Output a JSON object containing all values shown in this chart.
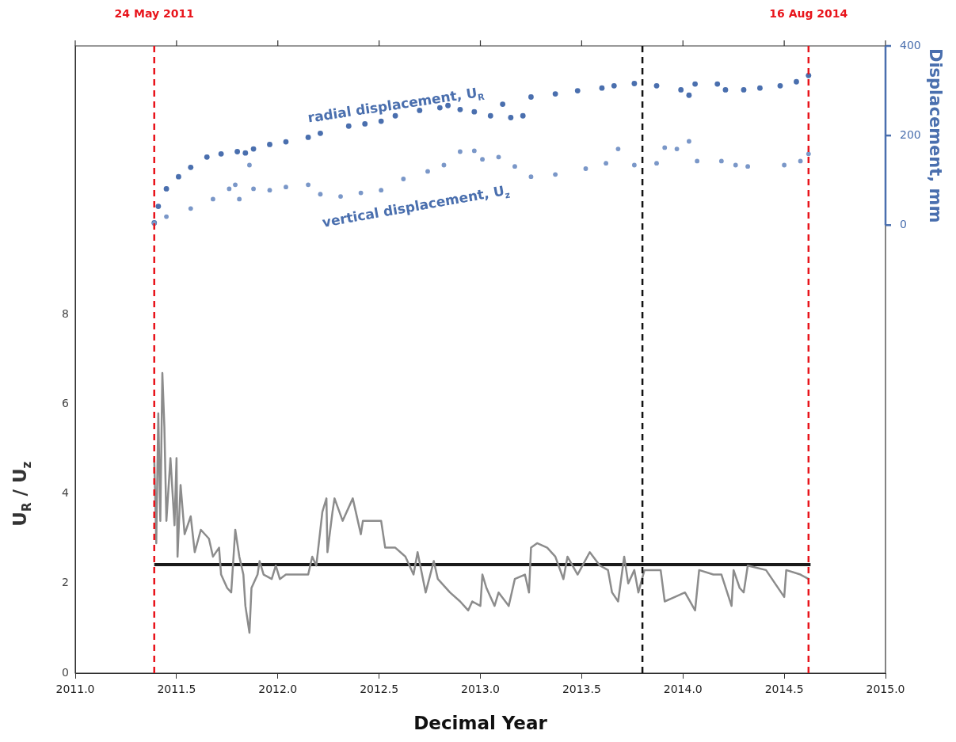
{
  "chart_data": {
    "type": "line",
    "xlabel": "Decimal Year",
    "ylabel": "U$_{R}$ / U$_{z}$",
    "y2label": "Displacement, mm",
    "xlim": [
      2011,
      2015
    ],
    "xticks": [
      {
        "value": 2011,
        "label": "2011.0"
      },
      {
        "value": 2011.5,
        "label": "2011.5"
      },
      {
        "value": 2012,
        "label": "2012.0"
      },
      {
        "value": 2012.5,
        "label": "2012.5"
      },
      {
        "value": 2013,
        "label": "2013.0"
      },
      {
        "value": 2013.5,
        "label": "2013.5"
      },
      {
        "value": 2014,
        "label": "2014.0"
      },
      {
        "value": 2014.5,
        "label": "2014.5"
      },
      {
        "value": 2015,
        "label": "2015.0"
      }
    ],
    "ylim": [
      0,
      14
    ],
    "yticks": [
      0,
      2,
      4,
      6,
      8
    ],
    "y2lim": [
      -1000,
      400
    ],
    "y2ticks": [
      0,
      200,
      400
    ],
    "grid": false,
    "legend": false,
    "ref_lines": [
      {
        "axis": "x",
        "value": 2011.39,
        "label": "24 May 2011",
        "color": "#e8141b",
        "line_style": "dashed"
      },
      {
        "axis": "x",
        "value": 2014.62,
        "label": "16 Aug 2014",
        "color": "#e8141b",
        "line_style": "dashed"
      },
      {
        "axis": "x",
        "value": 2013.8,
        "color": "#111111",
        "line_style": "dashed"
      }
    ],
    "series": [
      {
        "color": "#8c8c8c",
        "marker": "none",
        "x": [
          2011.39,
          2011.4,
          2011.41,
          2011.42,
          2011.43,
          2011.44,
          2011.45,
          2011.47,
          2011.49,
          2011.5,
          2011.505,
          2011.52,
          2011.54,
          2011.57,
          2011.59,
          2011.62,
          2011.66,
          2011.68,
          2011.71,
          2011.72,
          2011.75,
          2011.77,
          2011.79,
          2011.81,
          2011.83,
          2011.84,
          2011.86,
          2011.87,
          2011.9,
          2011.91,
          2011.93,
          2011.97,
          2011.99,
          2012.01,
          2012.04,
          2012.15,
          2012.17,
          2012.19,
          2012.22,
          2012.24,
          2012.245,
          2012.27,
          2012.28,
          2012.32,
          2012.37,
          2012.41,
          2012.42,
          2012.51,
          2012.53,
          2012.58,
          2012.63,
          2012.67,
          2012.69,
          2012.73,
          2012.77,
          2012.79,
          2012.85,
          2012.9,
          2012.94,
          2012.96,
          2013.0,
          2013.01,
          2013.03,
          2013.07,
          2013.09,
          2013.14,
          2013.17,
          2013.22,
          2013.24,
          2013.25,
          2013.28,
          2013.33,
          2013.37,
          2013.41,
          2013.43,
          2013.48,
          2013.54,
          2013.59,
          2013.63,
          2013.65,
          2013.68,
          2013.71,
          2013.73,
          2013.76,
          2013.78,
          2013.81,
          2013.89,
          2013.91,
          2013.96,
          2014.01,
          2014.06,
          2014.08,
          2014.15,
          2014.19,
          2014.24,
          2014.25,
          2014.28,
          2014.3,
          2014.32,
          2014.41,
          2014.5,
          2014.51,
          2014.58,
          2014.62
        ],
        "values": [
          4.8,
          2.9,
          5.8,
          3.4,
          6.7,
          5.5,
          3.4,
          4.8,
          3.3,
          4.8,
          2.6,
          4.2,
          3.1,
          3.5,
          2.7,
          3.2,
          3.0,
          2.6,
          2.8,
          2.2,
          1.9,
          1.8,
          3.2,
          2.6,
          2.2,
          1.5,
          0.9,
          1.9,
          2.2,
          2.5,
          2.2,
          2.1,
          2.4,
          2.1,
          2.2,
          2.2,
          2.6,
          2.4,
          3.6,
          3.9,
          2.7,
          3.6,
          3.9,
          3.4,
          3.9,
          3.1,
          3.4,
          3.4,
          2.8,
          2.8,
          2.6,
          2.2,
          2.7,
          1.8,
          2.5,
          2.1,
          1.8,
          1.6,
          1.4,
          1.6,
          1.5,
          2.2,
          1.9,
          1.5,
          1.8,
          1.5,
          2.1,
          2.2,
          1.8,
          2.8,
          2.9,
          2.8,
          2.6,
          2.1,
          2.6,
          2.2,
          2.7,
          2.4,
          2.3,
          1.8,
          1.6,
          2.6,
          2.0,
          2.3,
          1.8,
          2.3,
          2.3,
          1.6,
          1.7,
          1.8,
          1.4,
          2.3,
          2.2,
          2.2,
          1.5,
          2.3,
          1.9,
          1.8,
          2.4,
          2.3,
          1.7,
          2.3,
          2.2,
          2.1
        ]
      },
      {
        "color": "#1a1a1a",
        "marker": "none",
        "x": [
          2011.39,
          2014.63
        ],
        "values": [
          2.42,
          2.42
        ]
      },
      {
        "type": "scatter",
        "axis": "y2",
        "name": "radial displacement, U$_{R}$",
        "color": "#4a6fae",
        "marker": "circle",
        "x": [
          2011.39,
          2011.41,
          2011.45,
          2011.51,
          2011.57,
          2011.65,
          2011.72,
          2011.8,
          2011.84,
          2011.88,
          2011.96,
          2012.04,
          2012.15,
          2012.21,
          2012.35,
          2012.43,
          2012.51,
          2012.58,
          2012.7,
          2012.8,
          2012.84,
          2012.9,
          2012.97,
          2013.05,
          2013.11,
          2013.15,
          2013.21,
          2013.25,
          2013.37,
          2013.48,
          2013.6,
          2013.66,
          2013.76,
          2013.87,
          2013.99,
          2014.03,
          2014.06,
          2014.17,
          2014.21,
          2014.3,
          2014.38,
          2014.48,
          2014.56,
          2014.62
        ],
        "values": [
          5,
          42,
          81,
          108,
          129,
          152,
          159,
          164,
          161,
          170,
          180,
          186,
          196,
          205,
          221,
          226,
          232,
          244,
          256,
          262,
          267,
          258,
          253,
          244,
          270,
          240,
          244,
          286,
          293,
          300,
          306,
          311,
          316,
          311,
          302,
          290,
          315,
          315,
          302,
          302,
          306,
          311,
          320,
          334
        ]
      },
      {
        "type": "scatter",
        "axis": "y2",
        "name": "vertical displacement, U$_{z}$",
        "color": "#7a97c8",
        "marker": "circle",
        "x": [
          2011.39,
          2011.45,
          2011.57,
          2011.68,
          2011.76,
          2011.79,
          2011.81,
          2011.86,
          2011.88,
          2011.96,
          2012.04,
          2012.15,
          2012.21,
          2012.31,
          2012.41,
          2012.51,
          2012.62,
          2012.74,
          2012.82,
          2012.9,
          2012.97,
          2013.01,
          2013.09,
          2013.17,
          2013.25,
          2013.37,
          2013.52,
          2013.62,
          2013.68,
          2013.76,
          2013.87,
          2013.91,
          2013.97,
          2014.03,
          2014.07,
          2014.19,
          2014.26,
          2014.32,
          2014.5,
          2014.58,
          2014.62
        ],
        "values": [
          4,
          19,
          37,
          58,
          81,
          90,
          58,
          134,
          81,
          78,
          85,
          90,
          69,
          64,
          72,
          78,
          103,
          120,
          134,
          164,
          166,
          147,
          152,
          131,
          108,
          113,
          126,
          138,
          170,
          134,
          138,
          173,
          170,
          187,
          143,
          143,
          134,
          131,
          134,
          143,
          159
        ]
      }
    ]
  }
}
